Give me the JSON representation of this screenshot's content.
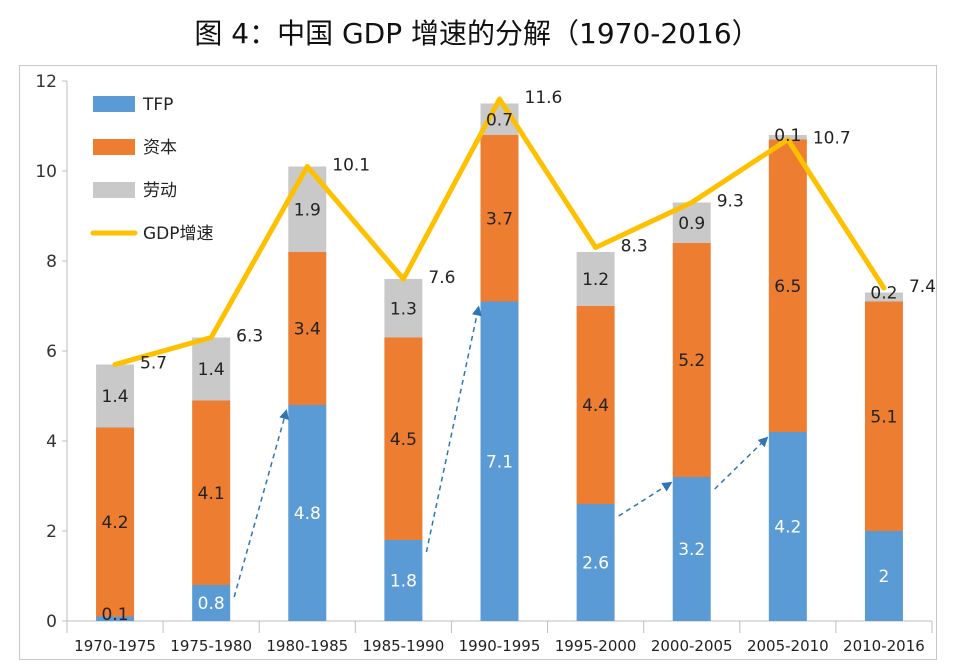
{
  "title": "图 4：中国 GDP 增速的分解（1970-2016）",
  "chart_data": {
    "type": "bar",
    "stacked": true,
    "categories": [
      "1970-1975",
      "1975-1980",
      "1980-1985",
      "1985-1990",
      "1990-1995",
      "1995-2000",
      "2000-2005",
      "2005-2010",
      "2010-2016"
    ],
    "series": [
      {
        "name": "TFP",
        "color": "#5B9BD5",
        "values": [
          0.1,
          0.8,
          4.8,
          1.8,
          7.1,
          2.6,
          3.2,
          4.2,
          2
        ]
      },
      {
        "name": "资本",
        "color": "#ED7D31",
        "values": [
          4.2,
          4.1,
          3.4,
          4.5,
          3.7,
          4.4,
          5.2,
          6.5,
          5.1
        ]
      },
      {
        "name": "劳动",
        "color": "#C9C9C9",
        "values": [
          1.4,
          1.4,
          1.9,
          1.3,
          0.7,
          1.2,
          0.9,
          0.1,
          0.2
        ]
      }
    ],
    "line": {
      "name": "GDP增速",
      "color": "#FFC000",
      "values": [
        5.7,
        6.3,
        10.1,
        7.6,
        11.6,
        8.3,
        9.3,
        10.7,
        7.4
      ]
    },
    "bar_labels": {
      "TFP": [
        "0.1",
        "0.8",
        "4.8",
        "1.8",
        "7.1",
        "2.6",
        "3.2",
        "4.2",
        "2"
      ],
      "资本": [
        "4.2",
        "4.1",
        "3.4",
        "4.5",
        "3.7",
        "4.4",
        "5.2",
        "6.5",
        "5.1"
      ],
      "劳动": [
        "1.4",
        "1.4",
        "1.9",
        "1.3",
        "0.7",
        "1.2",
        "0.9",
        "0.1",
        "0.2"
      ]
    },
    "line_labels": [
      "5.7",
      "6.3",
      "10.1",
      "7.6",
      "11.6",
      "8.3",
      "9.3",
      "10.7",
      "7.4"
    ],
    "ylim": [
      0,
      12
    ],
    "yticks": [
      0,
      2,
      4,
      6,
      8,
      10,
      12
    ],
    "ytick_labels": [
      "0",
      "2",
      "4",
      "6",
      "8",
      "10",
      "12"
    ],
    "legend": {
      "position": "top-left",
      "entries": [
        {
          "label": "TFP",
          "kind": "box",
          "color": "#5B9BD5"
        },
        {
          "label": "资本",
          "kind": "box",
          "color": "#ED7D31"
        },
        {
          "label": "劳动",
          "kind": "box",
          "color": "#C9C9C9"
        },
        {
          "label": "GDP增速",
          "kind": "line",
          "color": "#FFC000"
        }
      ]
    },
    "arrows": {
      "color": "#2E75B6",
      "style": "dashed",
      "links": [
        {
          "from_category": "1975-1980",
          "to_category": "1980-1985",
          "series": "TFP"
        },
        {
          "from_category": "1985-1990",
          "to_category": "1990-1995",
          "series": "TFP"
        },
        {
          "from_category": "1995-2000",
          "to_category": "2000-2005",
          "series": "TFP"
        },
        {
          "from_category": "2000-2005",
          "to_category": "2005-2010",
          "series": "TFP"
        }
      ]
    }
  }
}
